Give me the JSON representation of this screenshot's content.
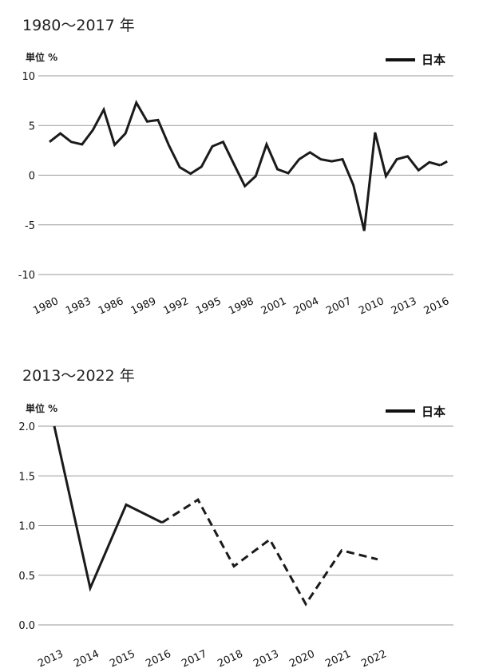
{
  "chart_data": [
    {
      "type": "line",
      "title": "1980～2017 年",
      "ylabel": "単位 %",
      "ylim": [
        -10,
        10
      ],
      "yticks": [
        "10",
        "5",
        "0",
        "-5",
        "-10"
      ],
      "ytick_values": [
        10,
        5,
        0,
        -5,
        -10
      ],
      "xtick_labels": [
        "1980",
        "1983",
        "1986",
        "1989",
        "1992",
        "1995",
        "1998",
        "2001",
        "2004",
        "2007",
        "2010",
        "2013",
        "2016"
      ],
      "legend": {
        "label": "日本",
        "position": "top-right"
      },
      "grid": true,
      "x": [
        1980,
        1981,
        1982,
        1983,
        1984,
        1985,
        1986,
        1987,
        1988,
        1989,
        1990,
        1991,
        1992,
        1993,
        1994,
        1995,
        1996,
        1997,
        1998,
        1999,
        2000,
        2001,
        2002,
        2003,
        2004,
        2005,
        2006,
        2007,
        2008,
        2009,
        2010,
        2011,
        2012,
        2013,
        2014,
        2015,
        2016,
        2017
      ],
      "series": [
        {
          "name": "日本",
          "values": [
            3.35,
            4.2,
            3.35,
            3.1,
            4.55,
            6.6,
            3.05,
            4.2,
            7.3,
            5.4,
            5.55,
            3.0,
            0.8,
            0.15,
            0.85,
            2.9,
            3.35,
            1.1,
            -1.1,
            -0.1,
            3.1,
            0.6,
            0.2,
            1.6,
            2.3,
            1.6,
            1.4,
            1.6,
            -1.0,
            -5.6,
            4.3,
            -0.1,
            1.6,
            1.9,
            0.5,
            1.3,
            1.0,
            1.6
          ],
          "dashed_from_index": 36
        }
      ]
    },
    {
      "type": "line",
      "title": "2013～2022 年",
      "ylabel": "単位 %",
      "ylim": [
        0,
        2
      ],
      "yticks": [
        "2.0",
        "1.5",
        "1.0",
        "0.5",
        "0.0"
      ],
      "ytick_values": [
        2,
        1.5,
        1,
        0.5,
        0
      ],
      "xtick_labels": [
        "2013",
        "2014",
        "2015",
        "2016",
        "2017",
        "2018",
        "2013",
        "2020",
        "2021",
        "2022"
      ],
      "legend": {
        "label": "日本",
        "position": "top-right"
      },
      "grid": true,
      "series": [
        {
          "name": "日本",
          "values": [
            2.0,
            0.37,
            1.21,
            1.03,
            1.26,
            0.59,
            0.86,
            0.21,
            0.75,
            0.66
          ],
          "dashed_from_index": 3
        }
      ]
    }
  ]
}
